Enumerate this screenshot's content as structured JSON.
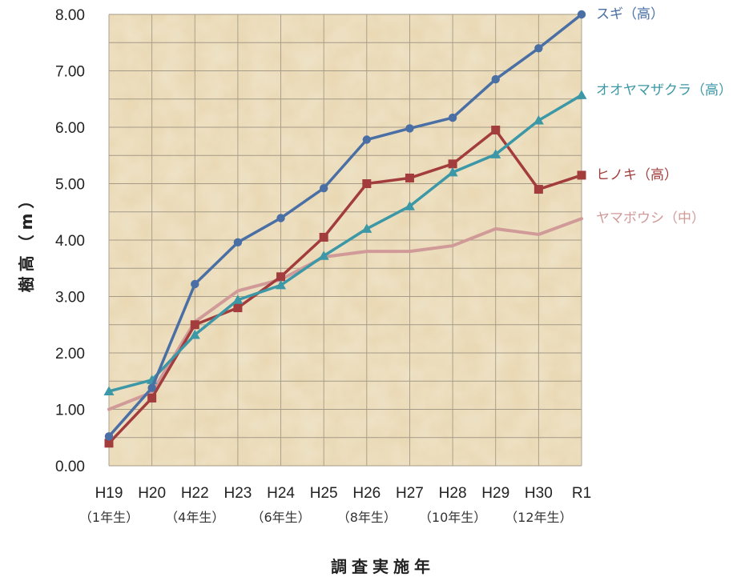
{
  "chart_data": {
    "type": "line",
    "ylabel": "樹高（m）",
    "xlabel": "調査実施年",
    "ylim": [
      0,
      8
    ],
    "yticks": [
      "0.00",
      "1.00",
      "2.00",
      "3.00",
      "4.00",
      "5.00",
      "6.00",
      "7.00",
      "8.00"
    ],
    "categories": [
      "H19",
      "H20",
      "H22",
      "H23",
      "H24",
      "H25",
      "H26",
      "H27",
      "H28",
      "H29",
      "H30",
      "R1"
    ],
    "sublabels": [
      {
        "index": 0,
        "text": "（1年生）"
      },
      {
        "index": 2,
        "text": "（4年生）"
      },
      {
        "index": 4,
        "text": "（6年生）"
      },
      {
        "index": 6,
        "text": "（8年生）"
      },
      {
        "index": 8,
        "text": "（10年生）"
      },
      {
        "index": 10,
        "text": "（12年生）"
      }
    ],
    "grid": true,
    "legend": "right-of-series-ends",
    "series": [
      {
        "name": "スギ（高）",
        "color": "#4a6fa5",
        "marker": "circle",
        "values": [
          0.52,
          1.38,
          3.22,
          3.96,
          4.39,
          4.92,
          5.78,
          5.98,
          6.17,
          6.85,
          7.4,
          8.0
        ]
      },
      {
        "name": "オオヤマザクラ（高）",
        "color": "#3c97a6",
        "marker": "triangle",
        "values": [
          1.32,
          1.52,
          2.32,
          2.94,
          3.2,
          3.72,
          4.2,
          4.6,
          5.2,
          5.52,
          6.12,
          6.57
        ]
      },
      {
        "name": "ヒノキ（高）",
        "color": "#a33d3d",
        "marker": "square",
        "values": [
          0.4,
          1.2,
          2.5,
          2.8,
          3.35,
          4.05,
          5.0,
          5.1,
          5.35,
          5.95,
          4.9,
          5.15
        ]
      },
      {
        "name": "ヤマボウシ（中）",
        "color": "#d09a98",
        "marker": "none",
        "values": [
          1.0,
          1.3,
          2.55,
          3.1,
          3.3,
          3.7,
          3.8,
          3.8,
          3.9,
          4.2,
          4.1,
          4.38
        ]
      }
    ]
  }
}
